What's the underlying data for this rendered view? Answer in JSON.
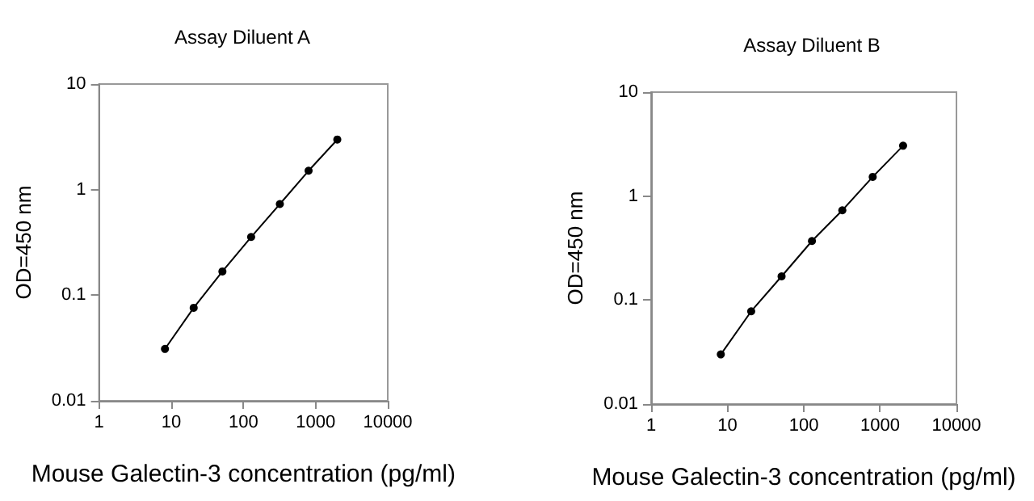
{
  "chart_data": [
    {
      "type": "line",
      "title": "Assay Diluent A",
      "xlabel": "Mouse Galectin-3 concentration (pg/ml)",
      "ylabel": "OD=450 nm",
      "log": "xy",
      "grid": false,
      "marker": "circle",
      "line_style": "solid",
      "xlim": [
        1,
        10000
      ],
      "xticks": [
        1,
        10,
        100,
        1000,
        10000
      ],
      "ylim": [
        0.01,
        10
      ],
      "yticks": [
        0.01,
        0.1,
        1,
        10
      ],
      "series": [
        {
          "color": "#000000",
          "x": [
            8.19,
            20.48,
            51.2,
            128,
            320,
            800,
            2000
          ],
          "values": [
            0.031,
            0.076,
            0.168,
            0.356,
            0.73,
            1.51,
            2.98
          ]
        }
      ]
    },
    {
      "type": "line",
      "title": "Assay Diluent B",
      "xlabel": "Mouse Galectin-3 concentration (pg/ml)",
      "ylabel": "OD=450 nm",
      "log": "xy",
      "grid": false,
      "marker": "circle",
      "line_style": "solid",
      "xlim": [
        1,
        10000
      ],
      "xticks": [
        1,
        10,
        100,
        1000,
        10000
      ],
      "ylim": [
        0.01,
        10
      ],
      "yticks": [
        0.01,
        0.1,
        1,
        10
      ],
      "series": [
        {
          "color": "#000000",
          "x": [
            8.19,
            20.48,
            51.2,
            128,
            320,
            800,
            2000
          ],
          "values": [
            0.03,
            0.078,
            0.169,
            0.37,
            0.73,
            1.53,
            3.05
          ]
        }
      ]
    }
  ]
}
